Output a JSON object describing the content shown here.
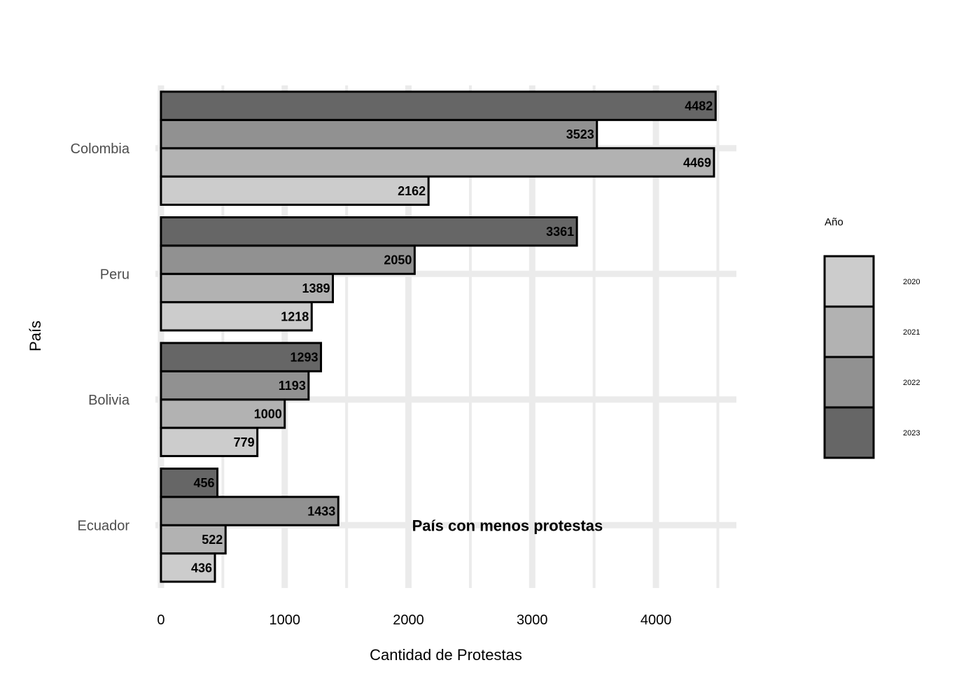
{
  "chart_data": {
    "type": "bar",
    "orientation": "horizontal",
    "categories": [
      "Colombia",
      "Peru",
      "Bolivia",
      "Ecuador"
    ],
    "series": [
      {
        "name": "2020",
        "color": "#cccccc",
        "values": [
          2162,
          1218,
          779,
          436
        ]
      },
      {
        "name": "2021",
        "color": "#b2b2b2",
        "values": [
          4469,
          1389,
          1000,
          522
        ]
      },
      {
        "name": "2022",
        "color": "#919191",
        "values": [
          3523,
          2050,
          1193,
          1433
        ]
      },
      {
        "name": "2023",
        "color": "#666666",
        "values": [
          4482,
          3361,
          1293,
          456
        ]
      }
    ],
    "xlabel": "Cantidad de Protestas",
    "ylabel": "País",
    "xlim": [
      -45,
      4650
    ],
    "xticks": [
      0,
      1000,
      2000,
      3000,
      4000
    ],
    "grid": true,
    "legend": {
      "title": "Año",
      "position": "right"
    },
    "annotation": {
      "text": "País con menos protestas",
      "category": "Ecuador",
      "x": 2800
    }
  }
}
